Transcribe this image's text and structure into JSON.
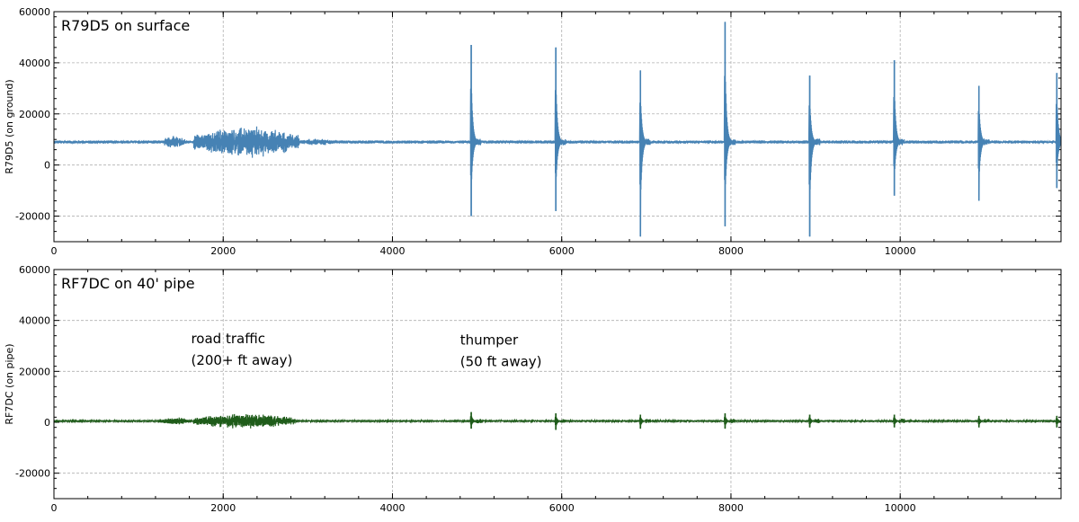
{
  "chart_data": [
    {
      "type": "line",
      "title": "R79D5 on surface",
      "xlabel": "",
      "ylabel": "R79D5 (on ground)",
      "xlim": [
        0,
        11900
      ],
      "ylim": [
        -30000,
        60000
      ],
      "xticks": [
        0,
        2000,
        4000,
        6000,
        8000,
        10000
      ],
      "yticks": [
        -20000,
        0,
        20000,
        40000,
        60000
      ],
      "grid": true,
      "color": "#4682b4",
      "baseline": 9000,
      "noise_amplitude": 600,
      "traffic_segments": [
        {
          "x": [
            1300,
            1550
          ],
          "amp": 3000
        },
        {
          "x": [
            1650,
            2900
          ],
          "amp": 6500
        },
        {
          "x": [
            2900,
            3300
          ],
          "amp": 1500
        }
      ],
      "spikes": [
        {
          "x": 4930,
          "max": 47000,
          "min": -20000
        },
        {
          "x": 5930,
          "max": 46000,
          "min": -18000
        },
        {
          "x": 6930,
          "max": 37000,
          "min": -28000
        },
        {
          "x": 7930,
          "max": 56000,
          "min": -24000
        },
        {
          "x": 8930,
          "max": 35000,
          "min": -28000
        },
        {
          "x": 9930,
          "max": 41000,
          "min": -12000
        },
        {
          "x": 10930,
          "max": 31000,
          "min": -14000
        },
        {
          "x": 11850,
          "max": 36000,
          "min": -9000
        }
      ],
      "annotations": []
    },
    {
      "type": "line",
      "title": "RF7DC on 40' pipe",
      "xlabel": "",
      "ylabel": "RF7DC (on pipe)",
      "xlim": [
        0,
        11900
      ],
      "ylim": [
        -30000,
        60000
      ],
      "xticks": [
        0,
        2000,
        4000,
        6000,
        8000,
        10000
      ],
      "yticks": [
        -20000,
        0,
        20000,
        40000,
        60000
      ],
      "grid": true,
      "color": "#1f5c1a",
      "baseline": 500,
      "noise_amplitude": 400,
      "traffic_segments": [
        {
          "x": [
            1250,
            1600
          ],
          "amp": 1500
        },
        {
          "x": [
            1650,
            2850
          ],
          "amp": 3000
        }
      ],
      "spikes": [
        {
          "x": 4930,
          "max": 4000,
          "min": -2500
        },
        {
          "x": 5930,
          "max": 3500,
          "min": -3000
        },
        {
          "x": 6930,
          "max": 3000,
          "min": -2500
        },
        {
          "x": 7930,
          "max": 3500,
          "min": -2500
        },
        {
          "x": 8930,
          "max": 3000,
          "min": -2000
        },
        {
          "x": 9930,
          "max": 3000,
          "min": -2000
        },
        {
          "x": 10930,
          "max": 2500,
          "min": -2000
        },
        {
          "x": 11850,
          "max": 2500,
          "min": -2000
        }
      ],
      "annotations": [
        {
          "lines": [
            "road traffic",
            "(200+ ft away)"
          ],
          "x": 1620,
          "y": 31000
        },
        {
          "lines": [
            "thumper",
            "(50 ft away)"
          ],
          "x": 4800,
          "y": 30500
        }
      ]
    }
  ]
}
